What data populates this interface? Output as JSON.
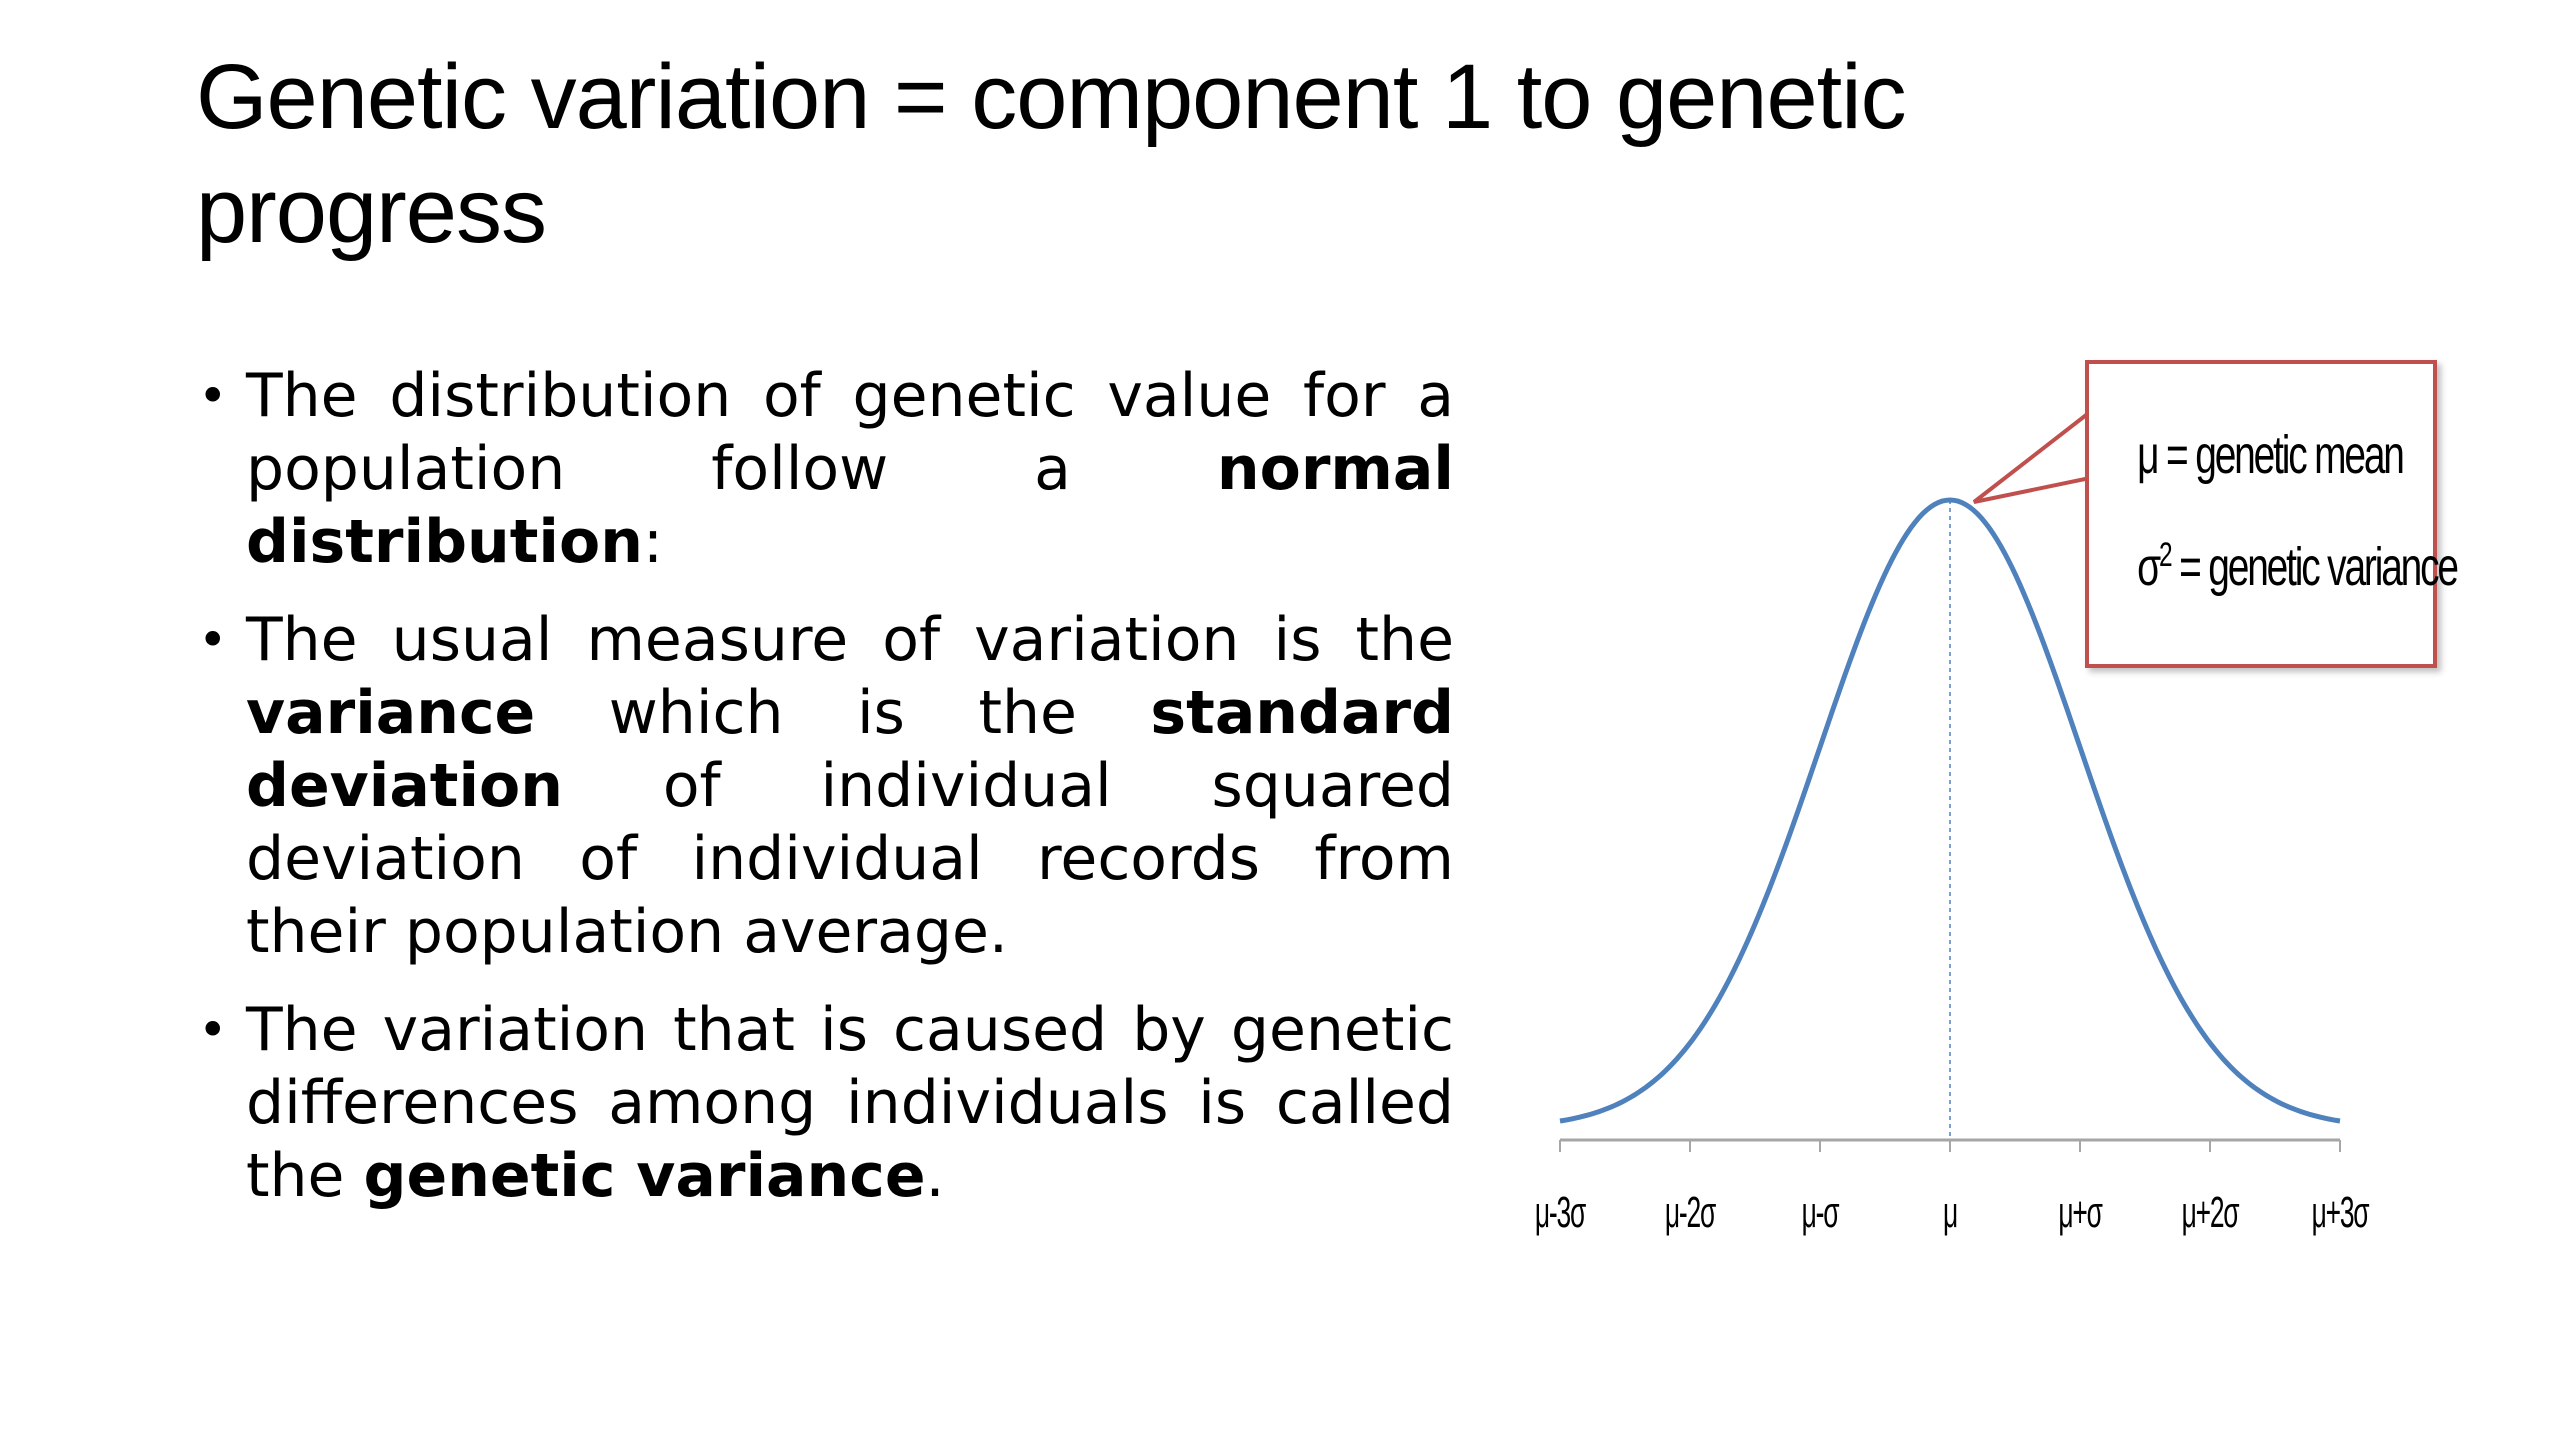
{
  "title": "Genetic variation = component 1 to genetic progress",
  "bullets": [
    {
      "parts": [
        {
          "text": "The distribution of genetic value for a population follow a ",
          "bold": false
        },
        {
          "text": "normal distribution",
          "bold": true
        },
        {
          "text": ":",
          "bold": false
        }
      ]
    },
    {
      "parts": [
        {
          "text": "The usual measure of variation is the ",
          "bold": false
        },
        {
          "text": "variance",
          "bold": true
        },
        {
          "text": " which is the ",
          "bold": false
        },
        {
          "text": "standard deviation",
          "bold": true
        },
        {
          "text": " of individual squared deviation of individual records from their population average.",
          "bold": false
        }
      ]
    },
    {
      "parts": [
        {
          "text": "The variation that is caused by genetic differences among individuals is called the ",
          "bold": false
        },
        {
          "text": "genetic variance",
          "bold": true
        },
        {
          "text": ".",
          "bold": false
        }
      ]
    }
  ],
  "bullet_symbol": "•",
  "figure": {
    "callout_line1": "μ = genetic mean",
    "callout_line2_prefix": "σ",
    "callout_line2_sup": "2",
    "callout_line2_suffix": " = genetic variance",
    "curve_color": "#4f81bd",
    "callout_color": "#c0504d",
    "axis_color": "#a6a6a6",
    "x_range_sigma": [
      -3,
      3
    ],
    "tick_labels": [
      "μ-3σ",
      "μ-2σ",
      "μ-σ",
      "μ",
      "μ+σ",
      "μ+2σ",
      "μ+3σ"
    ]
  }
}
